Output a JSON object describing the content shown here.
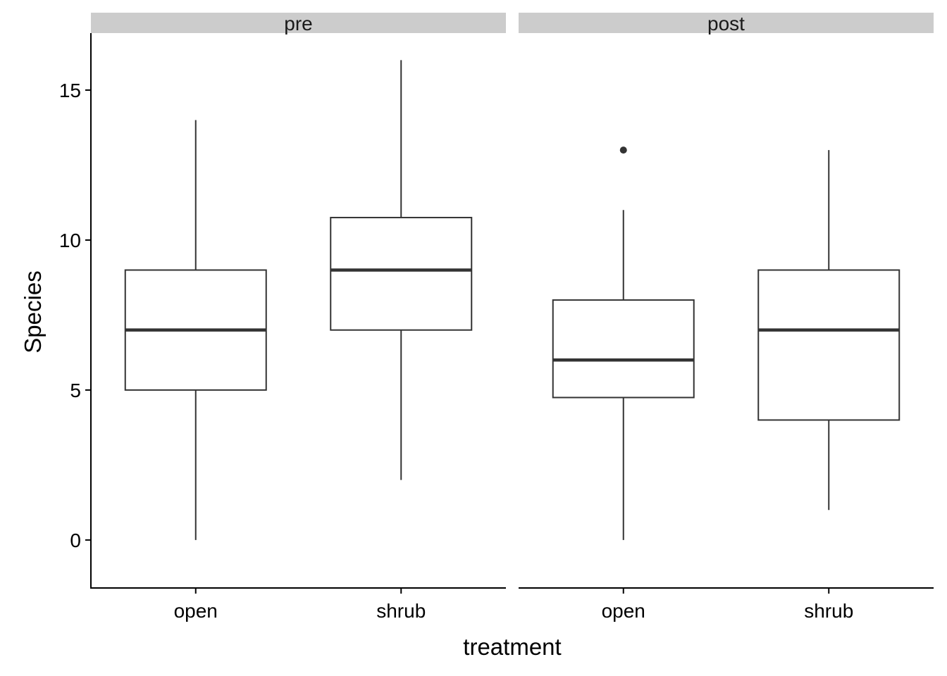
{
  "chart_data": {
    "type": "boxplot",
    "xlabel": "treatment",
    "ylabel": "Species",
    "ylim": [
      -1.6,
      16.9
    ],
    "yticks": [
      0,
      5,
      10,
      15
    ],
    "categories": [
      "open",
      "shrub"
    ],
    "grid": false,
    "legend": "none",
    "facets": [
      {
        "label": "pre",
        "boxes": [
          {
            "category": "open",
            "whisker_low": 0,
            "q1": 5,
            "median": 7,
            "q3": 9,
            "whisker_high": 14,
            "outliers": []
          },
          {
            "category": "shrub",
            "whisker_low": 2,
            "q1": 7,
            "median": 9,
            "q3": 10.75,
            "whisker_high": 16,
            "outliers": []
          }
        ]
      },
      {
        "label": "post",
        "boxes": [
          {
            "category": "open",
            "whisker_low": 0,
            "q1": 4.75,
            "median": 6,
            "q3": 8,
            "whisker_high": 11,
            "outliers": [
              13
            ]
          },
          {
            "category": "shrub",
            "whisker_low": 1,
            "q1": 4,
            "median": 7,
            "q3": 9,
            "whisker_high": 13,
            "outliers": []
          }
        ]
      }
    ]
  }
}
